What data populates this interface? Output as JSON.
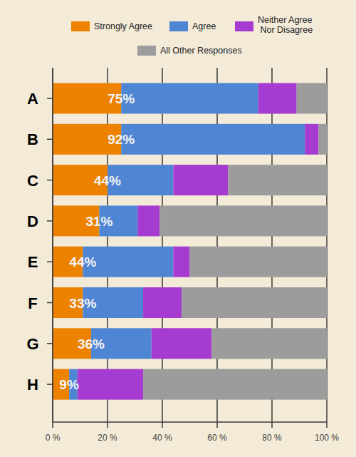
{
  "chart_data": {
    "type": "bar",
    "orientation": "horizontal",
    "stacked": true,
    "categories": [
      "A",
      "B",
      "C",
      "D",
      "E",
      "F",
      "G",
      "H"
    ],
    "series": [
      {
        "name": "Strongly Agree",
        "color": "#ec8200",
        "values": [
          25,
          25,
          20,
          17,
          11,
          11,
          14,
          6
        ]
      },
      {
        "name": "Agree",
        "color": "#4f86d4",
        "values": [
          50,
          67,
          24,
          14,
          33,
          22,
          22,
          3
        ]
      },
      {
        "name": "Neither Agree Nor Disagree",
        "color": "#a53bd0",
        "values": [
          14,
          5,
          20,
          8,
          6,
          14,
          22,
          24
        ]
      },
      {
        "name": "All Other Responses",
        "color": "#9c9c9c",
        "values": [
          11,
          3,
          36,
          61,
          50,
          53,
          42,
          67
        ]
      }
    ],
    "annotations": [
      "75%",
      "92%",
      "44%",
      "31%",
      "44%",
      "33%",
      "36%",
      "9%"
    ],
    "xlim": [
      0,
      100
    ],
    "xticks": [
      {
        "value": 0,
        "label": "0 %"
      },
      {
        "value": 20,
        "label": "20 %"
      },
      {
        "value": 40,
        "label": "40 %"
      },
      {
        "value": 60,
        "label": "60 %"
      },
      {
        "value": 80,
        "label": "80 %"
      },
      {
        "value": 100,
        "label": "100 %"
      }
    ],
    "grid": true,
    "legend": "top"
  }
}
